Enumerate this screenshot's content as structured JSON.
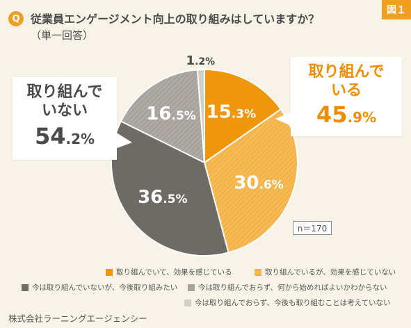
{
  "header": {
    "figure_tag": "図１",
    "q_badge": "Q",
    "question": "従業員エンゲージメント向上の取り組みはしていますか？",
    "sub": "（単一回答）"
  },
  "callouts": {
    "left": {
      "line1": "取り組んで",
      "line2": "いない",
      "pct_int": "54",
      "pct_dec": ".2%"
    },
    "right": {
      "line1": "取り組んで",
      "line2": "いる",
      "pct_int": "45",
      "pct_dec": ".9%"
    }
  },
  "n_label": "n＝170",
  "company": "株式会社ラーニングエージェンシー",
  "colors": {
    "orange": "#f0960a",
    "light_orange": "#f5b44a",
    "dark_gray": "#6e6a66",
    "mid_gray": "#a7a29d",
    "light_gray": "#d2cfcb"
  },
  "chart_data": {
    "type": "pie",
    "slices": [
      {
        "name": "取り組んでいて、効果を感じている",
        "value": 15.3,
        "label_int": "15",
        "label_dec": ".3%",
        "color": "#f0960a"
      },
      {
        "name": "取り組んでいるが、効果を感じていない",
        "value": 30.6,
        "label_int": "30",
        "label_dec": ".6%",
        "color": "#f5b44a"
      },
      {
        "name": "今は取り組んでいないが、今後取り組みたい",
        "value": 36.5,
        "label_int": "36",
        "label_dec": ".5%",
        "color": "#6e6a66"
      },
      {
        "name": "今は取り組んでおらず、何から始めればよいかわからない",
        "value": 16.5,
        "label_int": "16",
        "label_dec": ".5%",
        "color": "#a7a29d"
      },
      {
        "name": "今は取り組んでおらず、今後も取り組むことは考えていない",
        "value": 1.2,
        "label_int": "1",
        "label_dec": ".2%",
        "color": "#d2cfcb"
      }
    ],
    "start_angle_deg": 0,
    "direction": "clockwise",
    "legend_position": "bottom"
  }
}
